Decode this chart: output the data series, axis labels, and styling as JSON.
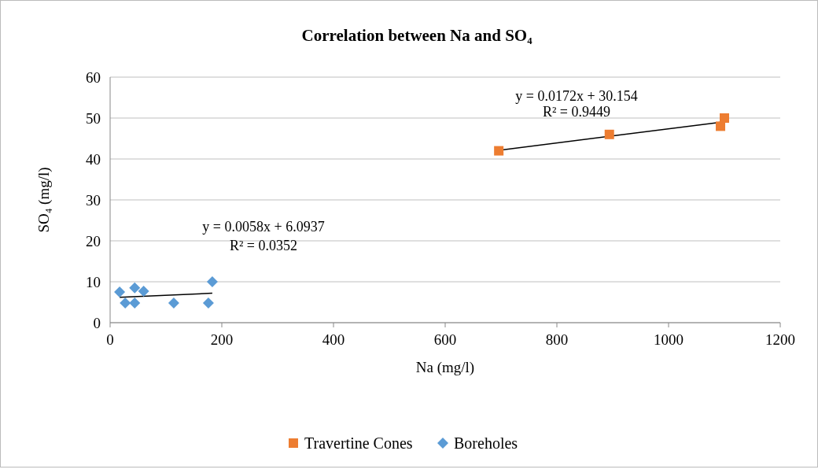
{
  "chart_data": {
    "type": "scatter",
    "title": "Correlation between Na and SO₄",
    "xlabel": "Na (mg/l)",
    "ylabel": "SO₄ (mg/l)",
    "xlim": [
      0,
      1200
    ],
    "xticks": [
      0,
      200,
      400,
      600,
      800,
      1000,
      1200
    ],
    "ylim": [
      0,
      60
    ],
    "yticks": [
      0,
      10,
      20,
      30,
      40,
      50,
      60
    ],
    "grid": "y",
    "legend": "bottom",
    "series": [
      {
        "name": "Travertine Cones",
        "color": "#ed7d31",
        "marker": "square",
        "x": [
          696,
          894,
          1093,
          1100
        ],
        "values": [
          42,
          46,
          48,
          50
        ]
      },
      {
        "name": "Boreholes",
        "color": "#5b9bd5",
        "marker": "diamond",
        "x": [
          17,
          27,
          44,
          44,
          60,
          114,
          176,
          183
        ],
        "values": [
          7.5,
          4.8,
          8.5,
          4.8,
          7.7,
          4.8,
          4.8,
          10
        ]
      },
      {
        "type": "line",
        "color": "#000000",
        "marker": "none",
        "x": [
          696,
          1100
        ],
        "values": [
          42.1,
          49.1
        ]
      },
      {
        "type": "line",
        "color": "#000000",
        "marker": "none",
        "x": [
          17,
          183
        ],
        "values": [
          6.2,
          7.2
        ]
      }
    ],
    "annotations": [
      "y = 0.0172x + 30.154",
      "R² = 0.9449",
      "y = 0.0058x + 6.0937",
      "R² = 0.0352"
    ]
  }
}
